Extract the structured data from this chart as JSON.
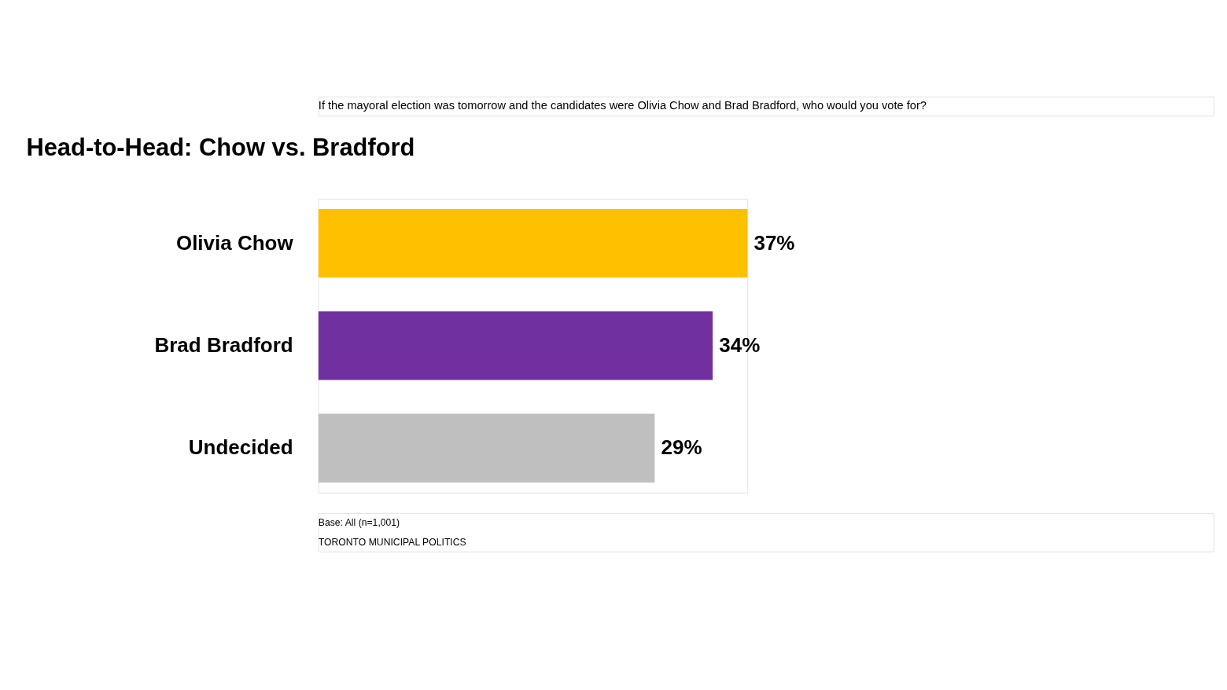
{
  "chart_data": {
    "type": "bar",
    "orientation": "horizontal",
    "title": "Head-to-Head: Chow vs. Bradford",
    "subtitle": "If the mayoral election was tomorrow and the candidates were Olivia Chow and Brad Bradford, who would you vote for?",
    "categories": [
      "Olivia Chow",
      "Brad Bradford",
      "Undecided"
    ],
    "values": [
      37,
      34,
      29
    ],
    "colors": [
      "#ffc000",
      "#7030a0",
      "#bfbfbf"
    ],
    "value_labels": [
      "37%",
      "34%",
      "29%"
    ],
    "annotations": [
      "Base: All (n=1,001)",
      "TORONTO MUNICIPAL POLITICS"
    ]
  }
}
